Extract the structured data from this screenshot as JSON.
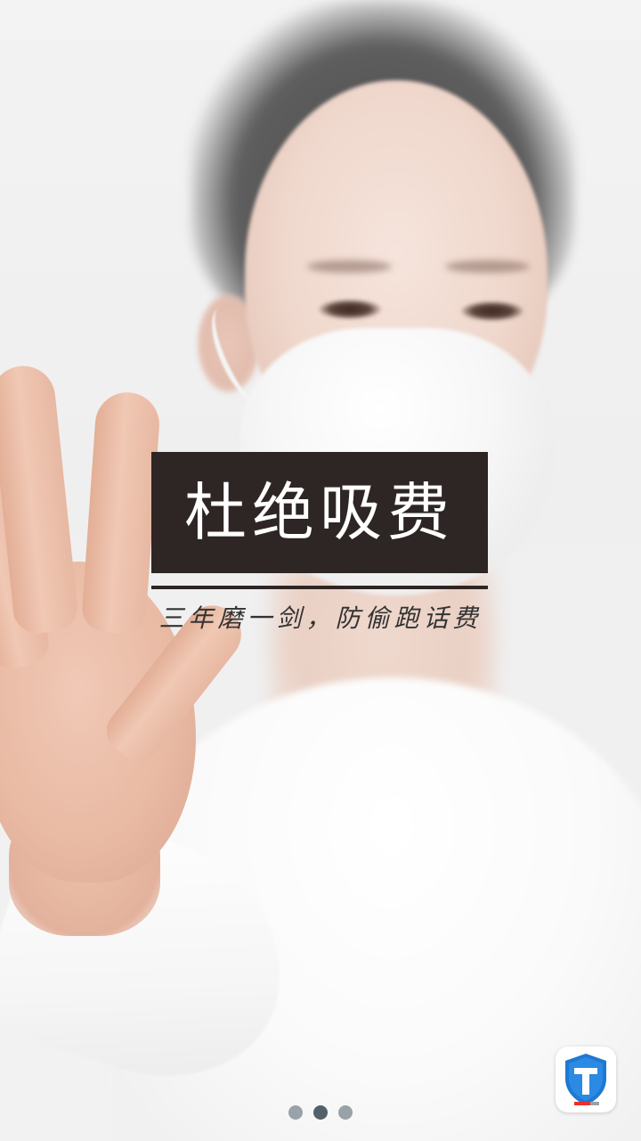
{
  "headline": "杜绝吸费",
  "tagline": "三年磨一剑，防偷跑话费",
  "pager": {
    "count": 3,
    "active_index": 1
  },
  "logo": {
    "icon": "shield-t-icon",
    "shield_color": "#1f78d1",
    "accent_color": "#e8312f"
  },
  "colors": {
    "headline_bg": "#2e2624",
    "headline_text": "#ffffff"
  }
}
